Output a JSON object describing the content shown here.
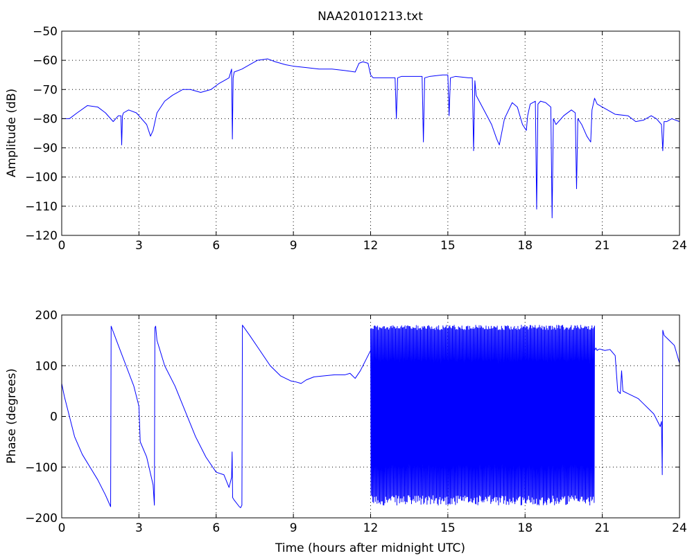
{
  "figure": {
    "title": "NAA20101213.txt",
    "line_color": "#0000ff",
    "axis_color": "#000000",
    "grid_color": "#000000"
  },
  "chart_data": [
    {
      "type": "line",
      "ylabel": "Amplitude (dB)",
      "xlim": [
        0,
        24
      ],
      "ylim": [
        -120,
        -50
      ],
      "xticks": [
        0,
        3,
        6,
        9,
        12,
        15,
        18,
        21,
        24
      ],
      "yticks": [
        -120,
        -110,
        -100,
        -90,
        -80,
        -70,
        -60,
        -50
      ],
      "grid": true,
      "series": [
        {
          "x": [
            0,
            0.3,
            0.6,
            1.0,
            1.4,
            1.7,
            2.0,
            2.2,
            2.3,
            2.33,
            2.36,
            2.4,
            2.6,
            2.9,
            3.1,
            3.3,
            3.45,
            3.55,
            3.7,
            4.0,
            4.3,
            4.7,
            5.0,
            5.4,
            5.8,
            6.1,
            6.3,
            6.5,
            6.6,
            6.63,
            6.66,
            6.7,
            7.0,
            7.3,
            7.6,
            8.0,
            8.3,
            8.7,
            9.0,
            9.5,
            10.0,
            10.5,
            11.0,
            11.4,
            11.55,
            11.7,
            11.9,
            12.0,
            12.1,
            12.3,
            12.8,
            12.95,
            13.0,
            13.05,
            13.2,
            13.7,
            14.0,
            14.05,
            14.1,
            14.3,
            14.8,
            15.0,
            15.05,
            15.1,
            15.3,
            15.8,
            15.95,
            16.0,
            16.05,
            16.1,
            16.4,
            16.7,
            16.9,
            17.0,
            17.2,
            17.5,
            17.7,
            17.9,
            18.05,
            18.1,
            18.2,
            18.4,
            18.45,
            18.5,
            18.6,
            18.8,
            19.0,
            19.05,
            19.1,
            19.2,
            19.5,
            19.8,
            19.95,
            20.0,
            20.05,
            20.2,
            20.4,
            20.55,
            20.6,
            20.7,
            20.8,
            21.0,
            21.5,
            22.0,
            22.3,
            22.6,
            22.9,
            23.1,
            23.3,
            23.35,
            23.4,
            23.5,
            23.7,
            24.0
          ],
          "y": [
            -80,
            -80,
            -78,
            -75.5,
            -76,
            -78,
            -81,
            -79,
            -79,
            -89,
            -79,
            -78,
            -77,
            -78,
            -80,
            -82,
            -86,
            -84,
            -78,
            -74,
            -72,
            -70,
            -70,
            -71,
            -70,
            -68,
            -67,
            -66,
            -63,
            -87,
            -66,
            -64,
            -63,
            -61.5,
            -60,
            -59.5,
            -60.5,
            -61.5,
            -62,
            -62.5,
            -63,
            -63,
            -63.5,
            -64,
            -61,
            -60.5,
            -61,
            -65,
            -66,
            -66,
            -66,
            -66,
            -80,
            -66,
            -65.5,
            -65.5,
            -65.5,
            -88,
            -66,
            -65.5,
            -65,
            -65,
            -79,
            -66,
            -65.5,
            -66,
            -66,
            -91,
            -67,
            -72,
            -77,
            -82,
            -87,
            -89,
            -80,
            -74.5,
            -76,
            -82,
            -84,
            -79,
            -75,
            -74,
            -111,
            -75,
            -74,
            -74.5,
            -76,
            -114,
            -80,
            -82,
            -79,
            -77,
            -78,
            -104,
            -80,
            -82,
            -86,
            -88,
            -77,
            -73,
            -75,
            -76,
            -78.5,
            -79,
            -81,
            -80.5,
            -79,
            -80,
            -82,
            -91,
            -81,
            -81,
            -80,
            -81
          ]
        }
      ]
    },
    {
      "type": "line",
      "xlabel": "Time (hours after midnight UTC)",
      "ylabel": "Phase (degrees)",
      "xlim": [
        0,
        24
      ],
      "ylim": [
        -200,
        200
      ],
      "xticks": [
        0,
        3,
        6,
        9,
        12,
        15,
        18,
        21,
        24
      ],
      "yticks": [
        -200,
        -100,
        0,
        100,
        200
      ],
      "grid": true,
      "series": [
        {
          "x": [
            0,
            0.1,
            0.3,
            0.5,
            0.8,
            1.1,
            1.4,
            1.7,
            1.9,
            1.92,
            2.2,
            2.5,
            2.8,
            3.0,
            3.05,
            3.3,
            3.55,
            3.6,
            3.62,
            3.65,
            3.7,
            4.0,
            4.4,
            4.8,
            5.2,
            5.6,
            6.0,
            6.3,
            6.5,
            6.6,
            6.62,
            6.64,
            6.7,
            6.9,
            6.95,
            7.0,
            7.02,
            7.3,
            7.7,
            8.1,
            8.5,
            8.9,
            9.1,
            9.3,
            9.5,
            9.8,
            10.2,
            10.6,
            11.0,
            11.2,
            11.4,
            11.6,
            11.8,
            12.0
          ],
          "y": [
            65,
            40,
            0,
            -40,
            -75,
            -100,
            -125,
            -155,
            -178,
            178,
            140,
            100,
            60,
            20,
            -50,
            -80,
            -135,
            -175,
            175,
            178,
            150,
            100,
            60,
            10,
            -40,
            -80,
            -110,
            -115,
            -140,
            -120,
            -70,
            -160,
            -165,
            -178,
            -180,
            -175,
            180,
            160,
            130,
            100,
            80,
            70,
            68,
            65,
            72,
            78,
            80,
            82,
            82,
            85,
            75,
            90,
            110,
            130
          ]
        },
        {
          "x_range": [
            12.0,
            20.7
          ],
          "y_range": [
            -180,
            180
          ],
          "style": "rapid wrapping between -180 and +180 degrees"
        },
        {
          "x": [
            20.7,
            20.75,
            20.8,
            20.85,
            20.9,
            21.1,
            21.3,
            21.5,
            21.6,
            21.7,
            21.75,
            21.8,
            22.0,
            22.2,
            22.4,
            22.6,
            22.8,
            23.0,
            23.1,
            23.2,
            23.25,
            23.3,
            23.33,
            23.35,
            23.4,
            23.6,
            23.8,
            24.0
          ],
          "y": [
            130,
            135,
            130,
            132,
            133,
            130,
            132,
            120,
            50,
            45,
            90,
            50,
            45,
            40,
            35,
            25,
            15,
            5,
            -5,
            -15,
            -20,
            -10,
            -115,
            170,
            160,
            150,
            140,
            105
          ]
        }
      ]
    }
  ]
}
